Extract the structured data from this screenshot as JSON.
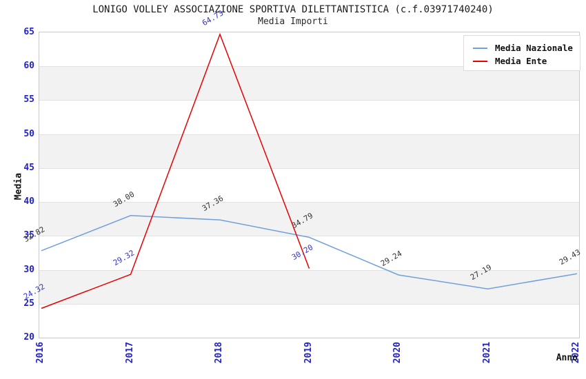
{
  "title": "LONIGO VOLLEY ASSOCIAZIONE SPORTIVA DILETTANTISTICA (c.f.03971740240)",
  "subtitle": "Media Importi",
  "axes": {
    "y_label": "Media",
    "x_label": "Anno",
    "yticks": [
      20,
      25,
      30,
      35,
      40,
      45,
      50,
      55,
      60,
      65
    ],
    "xticks": [
      "2016",
      "2017",
      "2018",
      "2019",
      "2020",
      "2021",
      "2022"
    ]
  },
  "legend": {
    "items": [
      {
        "label": "Media Nazionale"
      },
      {
        "label": "Media Ente"
      }
    ]
  },
  "chart_data": {
    "type": "line",
    "title": "LONIGO VOLLEY ASSOCIAZIONE SPORTIVA DILETTANTISTICA (c.f.03971740240)",
    "subtitle": "Media Importi",
    "xlabel": "Anno",
    "ylabel": "Media",
    "x": [
      2016,
      2017,
      2018,
      2019,
      2020,
      2021,
      2022
    ],
    "series": [
      {
        "name": "Media Nazionale",
        "color": "#6FA0DC",
        "label_color": "#333333",
        "values": [
          32.82,
          38.0,
          37.36,
          34.79,
          29.24,
          27.19,
          29.43
        ],
        "labels": [
          "32.82",
          "38.00",
          "37.36",
          "34.79",
          "29.24",
          "27.19",
          "29.43"
        ]
      },
      {
        "name": "Media Ente",
        "color": "#E60000",
        "label_color": "#3333CC",
        "values": [
          24.32,
          29.32,
          64.73,
          30.2
        ],
        "labels": [
          "24.32",
          "29.32",
          "64.73",
          "30.20"
        ]
      }
    ],
    "ylim": [
      20,
      65
    ],
    "yticks": [
      20,
      25,
      30,
      35,
      40,
      45,
      50,
      55,
      60,
      65
    ],
    "grid": "horizontal",
    "band_fill": true,
    "legend_position": "upper-right"
  },
  "colors": {
    "tick_label": "#2222CC",
    "band": "#F2F2F2",
    "gridline": "#E2E2E2",
    "plot_border": "#C9C9C9",
    "background": "#FFFFFF"
  }
}
